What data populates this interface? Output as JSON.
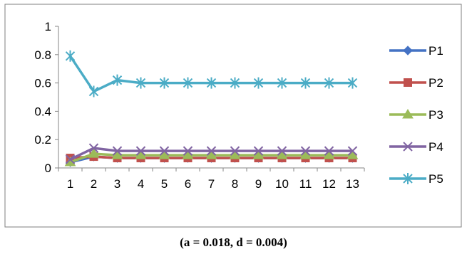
{
  "caption": "(a = 0.018,  d = 0.004)",
  "chart_data": {
    "type": "line",
    "categories": [
      "1",
      "2",
      "3",
      "4",
      "5",
      "6",
      "7",
      "8",
      "9",
      "10",
      "11",
      "12",
      "13"
    ],
    "ylim": [
      0,
      1
    ],
    "y_ticks": [
      "0",
      "0.2",
      "0.4",
      "0.6",
      "0.8",
      "1"
    ],
    "grid": false,
    "legend_position": "right",
    "series": [
      {
        "name": "P1",
        "marker": "diamond",
        "color": "#4472C4",
        "values": [
          0.04,
          0.08,
          0.07,
          0.07,
          0.07,
          0.07,
          0.07,
          0.07,
          0.07,
          0.07,
          0.07,
          0.07,
          0.07
        ]
      },
      {
        "name": "P2",
        "marker": "square",
        "color": "#C0504D",
        "values": [
          0.07,
          0.08,
          0.07,
          0.07,
          0.07,
          0.07,
          0.07,
          0.07,
          0.07,
          0.07,
          0.07,
          0.07,
          0.07
        ]
      },
      {
        "name": "P3",
        "marker": "triangle",
        "color": "#9BBB59",
        "values": [
          0.04,
          0.1,
          0.09,
          0.09,
          0.09,
          0.09,
          0.09,
          0.09,
          0.09,
          0.09,
          0.09,
          0.09,
          0.09
        ]
      },
      {
        "name": "P4",
        "marker": "x",
        "color": "#8064A2",
        "values": [
          0.06,
          0.14,
          0.12,
          0.12,
          0.12,
          0.12,
          0.12,
          0.12,
          0.12,
          0.12,
          0.12,
          0.12,
          0.12
        ]
      },
      {
        "name": "P5",
        "marker": "star",
        "color": "#4BACC6",
        "values": [
          0.79,
          0.54,
          0.62,
          0.6,
          0.6,
          0.6,
          0.6,
          0.6,
          0.6,
          0.6,
          0.6,
          0.6,
          0.6
        ]
      }
    ]
  }
}
